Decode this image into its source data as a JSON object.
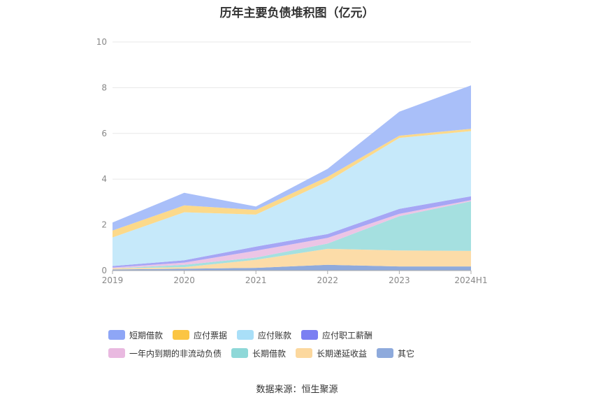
{
  "title": "历年主要负债堆积图（亿元）",
  "source_label": "数据来源：恒生聚源",
  "chart_data": {
    "type": "area",
    "stacked": true,
    "title": "历年主要负债堆积图（亿元）",
    "xlabel": "",
    "ylabel": "",
    "categories": [
      "2019",
      "2020",
      "2021",
      "2022",
      "2023",
      "2024H1"
    ],
    "ylim": [
      0,
      10
    ],
    "yticks": [
      0,
      2,
      4,
      6,
      8,
      10
    ],
    "grid": true,
    "legend_position": "bottom",
    "series": [
      {
        "name": "其它",
        "color": "#8faadc",
        "values": [
          0.05,
          0.08,
          0.12,
          0.25,
          0.18,
          0.18
        ]
      },
      {
        "name": "长期递延收益",
        "color": "#fcdca8",
        "values": [
          0.05,
          0.07,
          0.35,
          0.7,
          0.7,
          0.68
        ]
      },
      {
        "name": "长期借款",
        "color": "#a5e0e0",
        "values": [
          0.0,
          0.1,
          0.1,
          0.23,
          1.5,
          2.17
        ]
      },
      {
        "name": "一年内到期的非流动负债",
        "color": "#ecc5e5",
        "values": [
          0.03,
          0.1,
          0.3,
          0.25,
          0.1,
          0.05
        ]
      },
      {
        "name": "应付职工薪酬",
        "color": "#a6a6f5",
        "values": [
          0.07,
          0.1,
          0.18,
          0.17,
          0.22,
          0.17
        ]
      },
      {
        "name": "应付账款",
        "color": "#c6e9fa",
        "values": [
          1.25,
          2.1,
          1.4,
          2.3,
          3.1,
          2.85
        ]
      },
      {
        "name": "应付票据",
        "color": "#fcd98a",
        "values": [
          0.3,
          0.3,
          0.2,
          0.2,
          0.1,
          0.1
        ]
      },
      {
        "name": "短期借款",
        "color": "#a9bff9",
        "values": [
          0.35,
          0.55,
          0.15,
          0.35,
          1.05,
          1.9
        ]
      }
    ]
  },
  "legend": [
    {
      "label": "短期借款",
      "color": "#8ea6f6"
    },
    {
      "label": "应付票据",
      "color": "#fbc543"
    },
    {
      "label": "应付账款",
      "color": "#a9dff8"
    },
    {
      "label": "应付职工薪酬",
      "color": "#7b7ff2"
    },
    {
      "label": "一年内到期的非流动负债",
      "color": "#e9b9e0"
    },
    {
      "label": "长期借款",
      "color": "#8ed8d8"
    },
    {
      "label": "长期递延收益",
      "color": "#fcd89e"
    },
    {
      "label": "其它",
      "color": "#8eaadc"
    }
  ]
}
